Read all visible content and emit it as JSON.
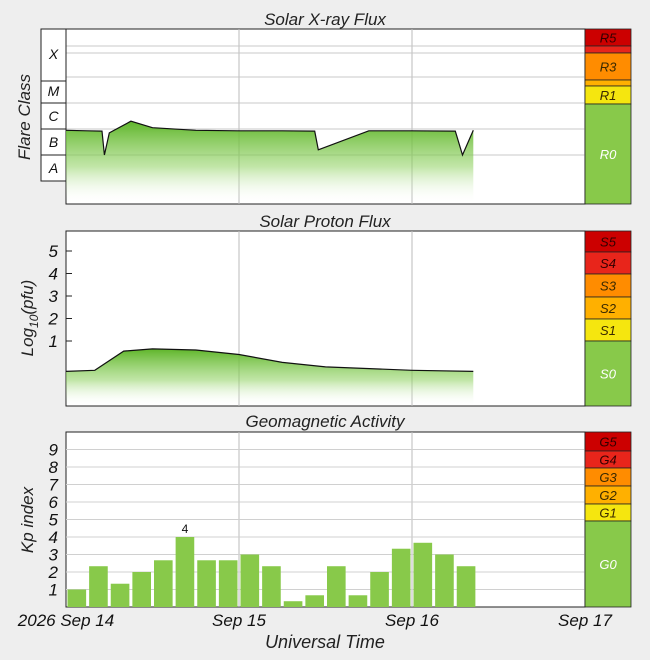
{
  "chart_data": [
    {
      "type": "area",
      "title": "Solar X-ray Flux",
      "ylabel": "Flare Class",
      "y_categories": [
        "A",
        "B",
        "C",
        "M",
        "X"
      ],
      "scale_label": "",
      "x": [
        "2026-09-14T00:00",
        "2026-09-14T03:00",
        "2026-09-14T05:00",
        "2026-09-14T05:20",
        "2026-09-14T06:00",
        "2026-09-14T09:00",
        "2026-09-14T12:00",
        "2026-09-14T18:00",
        "2026-09-15T00:00",
        "2026-09-15T06:00",
        "2026-09-15T10:30",
        "2026-09-15T11:00",
        "2026-09-15T18:00",
        "2026-09-16T00:00",
        "2026-09-16T06:00",
        "2026-09-16T07:00",
        "2026-09-16T08:30"
      ],
      "values": [
        1.95,
        1.93,
        1.92,
        1.0,
        1.85,
        2.3,
        2.05,
        1.95,
        1.93,
        1.93,
        1.92,
        1.2,
        1.93,
        1.93,
        1.92,
        1.0,
        1.95
      ],
      "xlim": [
        "2026-09-14T00:00",
        "2026-09-17T00:00"
      ],
      "x_ticks": [
        "Sep 15",
        "Sep 16"
      ],
      "scale": [
        {
          "label": "R5",
          "color": "#cc0000"
        },
        {
          "label": "",
          "color": "#e8251b"
        },
        {
          "label": "R3",
          "color": "#ff8c00"
        },
        {
          "label": "",
          "color": "#ffb000"
        },
        {
          "label": "R1",
          "color": "#f5e60f"
        },
        {
          "label": "R0",
          "color": "#88c94a"
        }
      ]
    },
    {
      "type": "area",
      "title": "Solar Proton Flux",
      "ylabel": "Log10(pfu)",
      "ylabel_main": "Log",
      "ylabel_sub": "10",
      "ylabel_tail": "(pfu)",
      "y_ticks": [
        "1",
        "2",
        "3",
        "4",
        "5"
      ],
      "x": [
        "2026-09-14T00:00",
        "2026-09-14T04:00",
        "2026-09-14T08:00",
        "2026-09-14T12:00",
        "2026-09-14T18:00",
        "2026-09-15T00:00",
        "2026-09-15T06:00",
        "2026-09-15T12:00",
        "2026-09-16T00:00",
        "2026-09-16T08:30"
      ],
      "values": [
        -0.35,
        -0.3,
        0.55,
        0.65,
        0.6,
        0.4,
        0.05,
        -0.15,
        -0.3,
        -0.35
      ],
      "ylim": [
        -1,
        6
      ],
      "scale": [
        {
          "label": "S5",
          "color": "#cc0000"
        },
        {
          "label": "S4",
          "color": "#e8251b"
        },
        {
          "label": "S3",
          "color": "#ff8c00"
        },
        {
          "label": "S2",
          "color": "#ffb000"
        },
        {
          "label": "S1",
          "color": "#f5e60f"
        },
        {
          "label": "S0",
          "color": "#88c94a"
        }
      ]
    },
    {
      "type": "bar",
      "title": "Geomagnetic Activity",
      "ylabel": "Kp index",
      "y_ticks": [
        "1",
        "2",
        "3",
        "4",
        "5",
        "6",
        "7",
        "8",
        "9"
      ],
      "ylim": [
        0,
        10
      ],
      "interval_hours": 3,
      "values": [
        1.0,
        2.33,
        1.33,
        2.0,
        2.67,
        4.0,
        2.67,
        2.67,
        3.0,
        2.33,
        0.33,
        0.67,
        2.33,
        0.67,
        2.0,
        3.33,
        3.67,
        3.0,
        2.33
      ],
      "annotations": [
        {
          "index": 5,
          "text": "4"
        }
      ],
      "scale": [
        {
          "label": "G5",
          "color": "#cc0000"
        },
        {
          "label": "G4",
          "color": "#e8251b"
        },
        {
          "label": "G3",
          "color": "#ff8c00"
        },
        {
          "label": "G2",
          "color": "#ffb000"
        },
        {
          "label": "G1",
          "color": "#f5e60f"
        },
        {
          "label": "G0",
          "color": "#88c94a"
        }
      ]
    }
  ],
  "x_axis": {
    "ticks": [
      "2026 Sep 14",
      "Sep 15",
      "Sep 16",
      "Sep 17"
    ],
    "label": "Universal Time"
  }
}
